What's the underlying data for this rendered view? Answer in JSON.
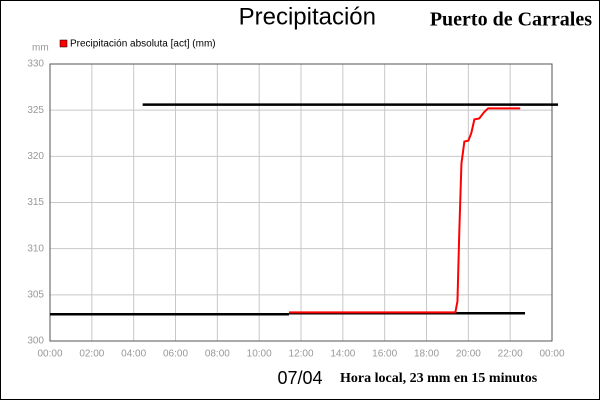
{
  "chart_data": {
    "type": "line",
    "title": "Precipitación",
    "subtitle": "Puerto de Carrales",
    "y_label": "mm",
    "date": "07/04",
    "x_label": "Hora local, 23 mm en 15 minutos",
    "xlim": [
      0,
      24
    ],
    "xticks": [
      {
        "value": 0,
        "label": "00:00"
      },
      {
        "value": 2,
        "label": "02:00"
      },
      {
        "value": 4,
        "label": "04:00"
      },
      {
        "value": 6,
        "label": "06:00"
      },
      {
        "value": 8,
        "label": "08:00"
      },
      {
        "value": 10,
        "label": "10:00"
      },
      {
        "value": 12,
        "label": "12:00"
      },
      {
        "value": 14,
        "label": "14:00"
      },
      {
        "value": 16,
        "label": "16:00"
      },
      {
        "value": 18,
        "label": "18:00"
      },
      {
        "value": 20,
        "label": "20:00"
      },
      {
        "value": 22,
        "label": "22:00"
      },
      {
        "value": 24,
        "label": "00:00"
      }
    ],
    "ylim": [
      300,
      330
    ],
    "yticks": [
      300,
      305,
      310,
      315,
      320,
      325,
      330
    ],
    "grid": true,
    "series": [
      {
        "name": "Precipitación absoluta [act] (mm)",
        "color": "#ff0000",
        "x": [
          11.43,
          19.38,
          19.48,
          19.57,
          19.67,
          19.81,
          20.0,
          20.14,
          20.29,
          20.52,
          20.76,
          20.95,
          22.48
        ],
        "values": [
          303.1,
          303.1,
          304.3,
          312.0,
          319.2,
          321.6,
          321.7,
          322.5,
          324.0,
          324.1,
          324.8,
          325.2,
          325.2
        ]
      }
    ],
    "reference_lines": [
      {
        "y": 325.6,
        "x": [
          4.43,
          24.29
        ],
        "color": "#000000"
      },
      {
        "y": 302.9,
        "x": [
          0,
          11.43
        ],
        "color": "#000000"
      },
      {
        "y": 303.0,
        "x": [
          11.43,
          22.71
        ],
        "color": "#000000"
      }
    ]
  }
}
